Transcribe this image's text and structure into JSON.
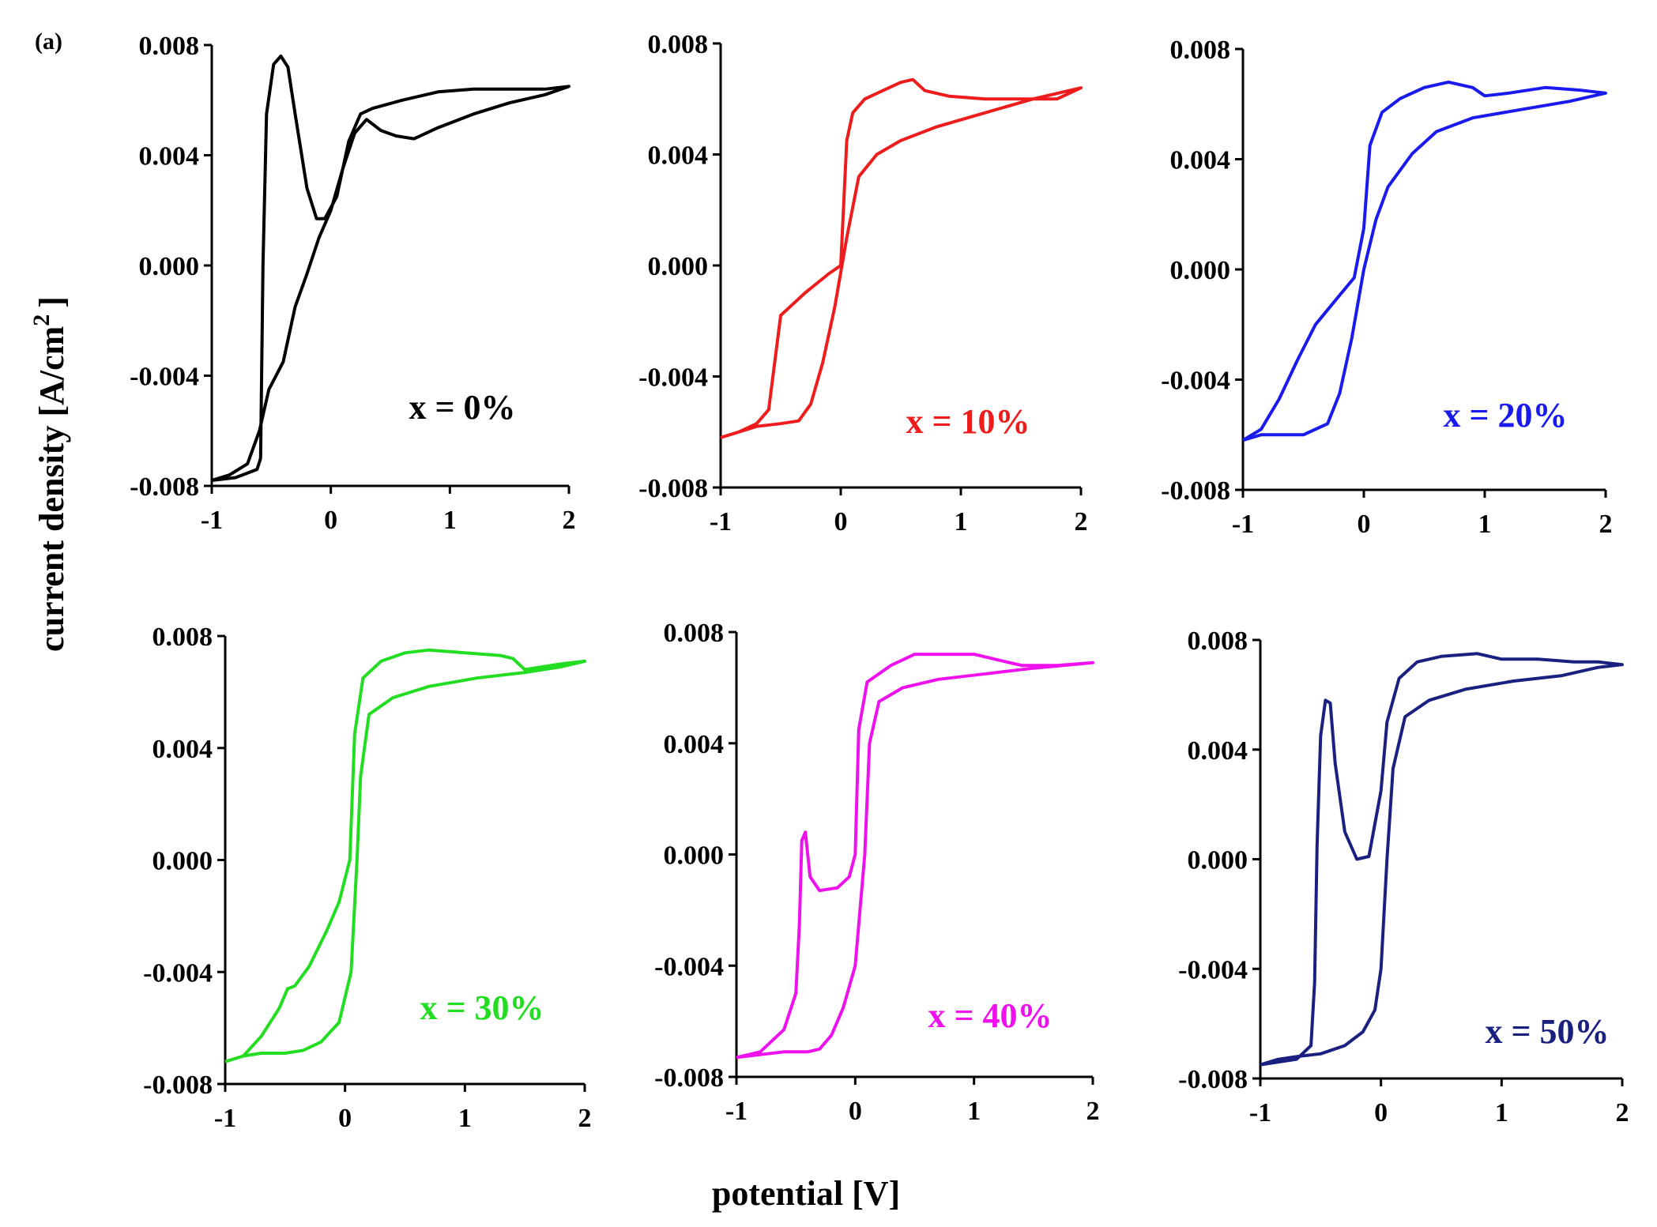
{
  "figure": {
    "panel_label": "(a)",
    "ylabel": "current density [A/cm",
    "ylabel_sup": "2",
    "ylabel_close": "]",
    "xlabel": "potential [V]"
  },
  "chart_data": [
    {
      "type": "line",
      "label": "x = 0%",
      "color": "#000000",
      "xlim": [
        -1,
        2
      ],
      "ylim": [
        -0.008,
        0.008
      ],
      "xticks": [
        "-1",
        "0",
        "1",
        "2"
      ],
      "yticks": [
        "-0.008",
        "-0.004",
        "0.000",
        "0.004",
        "0.008"
      ],
      "series": [
        {
          "name": "x = 0%",
          "points": [
            [
              -1.0,
              -0.0078
            ],
            [
              -0.85,
              -0.0076
            ],
            [
              -0.7,
              -0.0072
            ],
            [
              -0.6,
              -0.006
            ],
            [
              -0.52,
              -0.0045
            ],
            [
              -0.4,
              -0.0035
            ],
            [
              -0.3,
              -0.0015
            ],
            [
              -0.2,
              -0.0003
            ],
            [
              -0.1,
              0.001
            ],
            [
              0.0,
              0.002
            ],
            [
              0.1,
              0.0035
            ],
            [
              0.2,
              0.0048
            ],
            [
              0.3,
              0.0053
            ],
            [
              0.42,
              0.0049
            ],
            [
              0.55,
              0.0047
            ],
            [
              0.7,
              0.0046
            ],
            [
              0.9,
              0.005
            ],
            [
              1.2,
              0.0055
            ],
            [
              1.5,
              0.0059
            ],
            [
              1.8,
              0.0062
            ],
            [
              2.0,
              0.0065
            ],
            [
              1.8,
              0.0064
            ],
            [
              1.5,
              0.0064
            ],
            [
              1.2,
              0.0064
            ],
            [
              0.9,
              0.0063
            ],
            [
              0.6,
              0.006
            ],
            [
              0.35,
              0.0057
            ],
            [
              0.25,
              0.0055
            ],
            [
              0.15,
              0.0045
            ],
            [
              0.05,
              0.0025
            ],
            [
              -0.05,
              0.0017
            ],
            [
              -0.12,
              0.0017
            ],
            [
              -0.2,
              0.0028
            ],
            [
              -0.3,
              0.0055
            ],
            [
              -0.36,
              0.0072
            ],
            [
              -0.42,
              0.0076
            ],
            [
              -0.48,
              0.0073
            ],
            [
              -0.54,
              0.0055
            ],
            [
              -0.57,
              0.0
            ],
            [
              -0.59,
              -0.007
            ],
            [
              -0.62,
              -0.0074
            ],
            [
              -0.8,
              -0.0077
            ],
            [
              -1.0,
              -0.0078
            ]
          ]
        }
      ]
    },
    {
      "type": "line",
      "label": "x = 10%",
      "color": "#ee1c1c",
      "xlim": [
        -1,
        2
      ],
      "ylim": [
        -0.008,
        0.008
      ],
      "xticks": [
        "-1",
        "0",
        "1",
        "2"
      ],
      "yticks": [
        "-0.008",
        "-0.004",
        "0.000",
        "0.004",
        "0.008"
      ],
      "series": [
        {
          "name": "x = 10%",
          "points": [
            [
              -1.0,
              -0.0062
            ],
            [
              -0.85,
              -0.006
            ],
            [
              -0.7,
              -0.0058
            ],
            [
              -0.5,
              -0.0057
            ],
            [
              -0.35,
              -0.0056
            ],
            [
              -0.25,
              -0.005
            ],
            [
              -0.15,
              -0.0035
            ],
            [
              -0.05,
              -0.0015
            ],
            [
              0.05,
              0.001
            ],
            [
              0.15,
              0.0032
            ],
            [
              0.3,
              0.004
            ],
            [
              0.5,
              0.0045
            ],
            [
              0.8,
              0.005
            ],
            [
              1.2,
              0.0055
            ],
            [
              1.6,
              0.006
            ],
            [
              2.0,
              0.0064
            ],
            [
              1.8,
              0.006
            ],
            [
              1.5,
              0.006
            ],
            [
              1.2,
              0.006
            ],
            [
              0.9,
              0.0061
            ],
            [
              0.7,
              0.0063
            ],
            [
              0.6,
              0.0067
            ],
            [
              0.5,
              0.0066
            ],
            [
              0.35,
              0.0063
            ],
            [
              0.2,
              0.006
            ],
            [
              0.1,
              0.0055
            ],
            [
              0.05,
              0.0045
            ],
            [
              0.0,
              0.0
            ],
            [
              -0.1,
              -0.0003
            ],
            [
              -0.3,
              -0.001
            ],
            [
              -0.45,
              -0.0016
            ],
            [
              -0.5,
              -0.0018
            ],
            [
              -0.55,
              -0.0035
            ],
            [
              -0.6,
              -0.0052
            ],
            [
              -0.7,
              -0.0057
            ],
            [
              -0.85,
              -0.006
            ],
            [
              -1.0,
              -0.0062
            ]
          ]
        }
      ]
    },
    {
      "type": "line",
      "label": "x = 20%",
      "color": "#1a1aee",
      "xlim": [
        -1,
        2
      ],
      "ylim": [
        -0.008,
        0.008
      ],
      "xticks": [
        "-1",
        "0",
        "1",
        "2"
      ],
      "yticks": [
        "-0.008",
        "-0.004",
        "0.000",
        "0.004",
        "0.008"
      ],
      "series": [
        {
          "name": "x = 20%",
          "points": [
            [
              -1.0,
              -0.0062
            ],
            [
              -0.85,
              -0.006
            ],
            [
              -0.7,
              -0.006
            ],
            [
              -0.5,
              -0.006
            ],
            [
              -0.3,
              -0.0056
            ],
            [
              -0.2,
              -0.0045
            ],
            [
              -0.1,
              -0.0025
            ],
            [
              0.0,
              0.0
            ],
            [
              0.1,
              0.0018
            ],
            [
              0.2,
              0.003
            ],
            [
              0.4,
              0.0042
            ],
            [
              0.6,
              0.005
            ],
            [
              0.9,
              0.0055
            ],
            [
              1.3,
              0.0058
            ],
            [
              1.7,
              0.0061
            ],
            [
              2.0,
              0.0064
            ],
            [
              1.8,
              0.0065
            ],
            [
              1.5,
              0.0066
            ],
            [
              1.2,
              0.0064
            ],
            [
              1.0,
              0.0063
            ],
            [
              0.9,
              0.0066
            ],
            [
              0.7,
              0.0068
            ],
            [
              0.5,
              0.0066
            ],
            [
              0.3,
              0.0062
            ],
            [
              0.15,
              0.0057
            ],
            [
              0.05,
              0.0045
            ],
            [
              0.0,
              0.0015
            ],
            [
              -0.08,
              -0.0003
            ],
            [
              -0.25,
              -0.0012
            ],
            [
              -0.4,
              -0.002
            ],
            [
              -0.55,
              -0.0033
            ],
            [
              -0.7,
              -0.0047
            ],
            [
              -0.85,
              -0.0058
            ],
            [
              -1.0,
              -0.0062
            ]
          ]
        }
      ]
    },
    {
      "type": "line",
      "label": "x = 30%",
      "color": "#22dd22",
      "xlim": [
        -1,
        2
      ],
      "ylim": [
        -0.008,
        0.008
      ],
      "xticks": [
        "-1",
        "0",
        "1",
        "2"
      ],
      "yticks": [
        "-0.008",
        "-0.004",
        "0.000",
        "0.004",
        "0.008"
      ],
      "series": [
        {
          "name": "x = 30%",
          "points": [
            [
              -1.0,
              -0.0072
            ],
            [
              -0.85,
              -0.007
            ],
            [
              -0.7,
              -0.0069
            ],
            [
              -0.5,
              -0.0069
            ],
            [
              -0.35,
              -0.0068
            ],
            [
              -0.2,
              -0.0065
            ],
            [
              -0.05,
              -0.0058
            ],
            [
              0.05,
              -0.004
            ],
            [
              0.1,
              0.0
            ],
            [
              0.13,
              0.003
            ],
            [
              0.2,
              0.0052
            ],
            [
              0.4,
              0.0058
            ],
            [
              0.7,
              0.0062
            ],
            [
              1.1,
              0.0065
            ],
            [
              1.5,
              0.0067
            ],
            [
              1.8,
              0.0069
            ],
            [
              2.0,
              0.0071
            ],
            [
              1.8,
              0.007
            ],
            [
              1.5,
              0.0068
            ],
            [
              1.4,
              0.0072
            ],
            [
              1.3,
              0.0073
            ],
            [
              1.0,
              0.0074
            ],
            [
              0.7,
              0.0075
            ],
            [
              0.5,
              0.0074
            ],
            [
              0.3,
              0.0071
            ],
            [
              0.15,
              0.0065
            ],
            [
              0.08,
              0.0045
            ],
            [
              0.04,
              0.0
            ],
            [
              -0.05,
              -0.0015
            ],
            [
              -0.15,
              -0.0025
            ],
            [
              -0.3,
              -0.0038
            ],
            [
              -0.42,
              -0.0045
            ],
            [
              -0.48,
              -0.0046
            ],
            [
              -0.55,
              -0.0053
            ],
            [
              -0.7,
              -0.0063
            ],
            [
              -0.85,
              -0.007
            ],
            [
              -1.0,
              -0.0072
            ]
          ]
        }
      ]
    },
    {
      "type": "line",
      "label": "x = 40%",
      "color": "#ee11ee",
      "xlim": [
        -1,
        2
      ],
      "ylim": [
        -0.008,
        0.008
      ],
      "xticks": [
        "-1",
        "0",
        "1",
        "2"
      ],
      "yticks": [
        "-0.008",
        "-0.004",
        "0.000",
        "0.004",
        "0.008"
      ],
      "series": [
        {
          "name": "x = 40%",
          "points": [
            [
              -1.0,
              -0.0073
            ],
            [
              -0.8,
              -0.0072
            ],
            [
              -0.6,
              -0.0071
            ],
            [
              -0.4,
              -0.0071
            ],
            [
              -0.3,
              -0.007
            ],
            [
              -0.2,
              -0.0065
            ],
            [
              -0.1,
              -0.0055
            ],
            [
              0.0,
              -0.004
            ],
            [
              0.08,
              0.0
            ],
            [
              0.12,
              0.004
            ],
            [
              0.2,
              0.0055
            ],
            [
              0.4,
              0.006
            ],
            [
              0.7,
              0.0063
            ],
            [
              1.1,
              0.0065
            ],
            [
              1.5,
              0.0067
            ],
            [
              2.0,
              0.0069
            ],
            [
              1.7,
              0.0068
            ],
            [
              1.4,
              0.0068
            ],
            [
              1.2,
              0.007
            ],
            [
              1.0,
              0.0072
            ],
            [
              0.8,
              0.0072
            ],
            [
              0.5,
              0.0072
            ],
            [
              0.3,
              0.0068
            ],
            [
              0.1,
              0.0062
            ],
            [
              0.03,
              0.0045
            ],
            [
              0.0,
              0.0
            ],
            [
              -0.05,
              -0.0008
            ],
            [
              -0.15,
              -0.0012
            ],
            [
              -0.3,
              -0.0013
            ],
            [
              -0.38,
              -0.0008
            ],
            [
              -0.42,
              0.0008
            ],
            [
              -0.45,
              0.0005
            ],
            [
              -0.47,
              -0.0025
            ],
            [
              -0.5,
              -0.005
            ],
            [
              -0.6,
              -0.0063
            ],
            [
              -0.8,
              -0.0071
            ],
            [
              -1.0,
              -0.0073
            ]
          ]
        }
      ]
    },
    {
      "type": "line",
      "label": "x = 50%",
      "color": "#1a2080",
      "xlim": [
        -1,
        2
      ],
      "ylim": [
        -0.008,
        0.008
      ],
      "xticks": [
        "-1",
        "0",
        "1",
        "2"
      ],
      "yticks": [
        "-0.008",
        "-0.004",
        "0.000",
        "0.004",
        "0.008"
      ],
      "series": [
        {
          "name": "x = 50%",
          "points": [
            [
              -1.0,
              -0.0075
            ],
            [
              -0.85,
              -0.0073
            ],
            [
              -0.7,
              -0.0072
            ],
            [
              -0.5,
              -0.0071
            ],
            [
              -0.3,
              -0.0068
            ],
            [
              -0.15,
              -0.0063
            ],
            [
              -0.05,
              -0.0055
            ],
            [
              0.0,
              -0.004
            ],
            [
              0.05,
              0.0
            ],
            [
              0.1,
              0.0033
            ],
            [
              0.2,
              0.0052
            ],
            [
              0.4,
              0.0058
            ],
            [
              0.7,
              0.0062
            ],
            [
              1.1,
              0.0065
            ],
            [
              1.5,
              0.0067
            ],
            [
              1.8,
              0.007
            ],
            [
              2.0,
              0.0071
            ],
            [
              1.8,
              0.0072
            ],
            [
              1.6,
              0.0072
            ],
            [
              1.3,
              0.0073
            ],
            [
              1.0,
              0.0073
            ],
            [
              0.8,
              0.0075
            ],
            [
              0.5,
              0.0074
            ],
            [
              0.3,
              0.0072
            ],
            [
              0.15,
              0.0066
            ],
            [
              0.05,
              0.005
            ],
            [
              0.0,
              0.0025
            ],
            [
              -0.1,
              0.0001
            ],
            [
              -0.2,
              0.0
            ],
            [
              -0.3,
              0.001
            ],
            [
              -0.38,
              0.0035
            ],
            [
              -0.42,
              0.0057
            ],
            [
              -0.46,
              0.0058
            ],
            [
              -0.5,
              0.0045
            ],
            [
              -0.53,
              0.0005
            ],
            [
              -0.55,
              -0.0045
            ],
            [
              -0.58,
              -0.0068
            ],
            [
              -0.7,
              -0.0073
            ],
            [
              -0.85,
              -0.0074
            ],
            [
              -1.0,
              -0.0075
            ]
          ]
        }
      ]
    }
  ]
}
